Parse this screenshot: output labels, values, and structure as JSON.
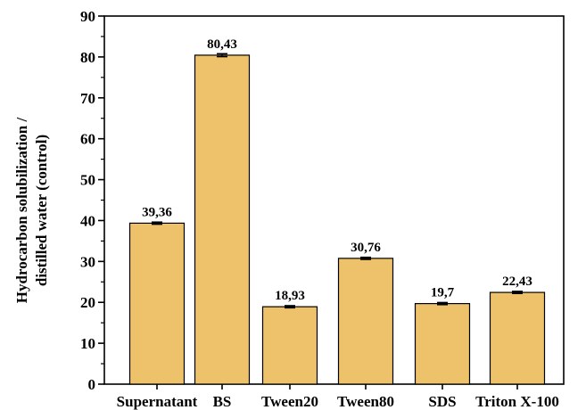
{
  "chart_data": {
    "type": "bar",
    "categories": [
      "Supernatant",
      "BS",
      "Tween20",
      "Tween80",
      "SDS",
      "Triton X-100"
    ],
    "values": [
      39.36,
      80.43,
      18.93,
      30.76,
      19.7,
      22.43
    ],
    "data_labels": [
      "39,36",
      "80,43",
      "18,93",
      "30,76",
      "19,7",
      "22,43"
    ],
    "error": [
      0.25,
      0.35,
      0.25,
      0.25,
      0.25,
      0.25
    ],
    "title": "",
    "xlabel": "",
    "ylabel_lines": [
      "Hydrocarbon solubilization /",
      "distilled water (control)"
    ],
    "ylim": [
      0,
      90
    ],
    "yticks": [
      0,
      10,
      20,
      30,
      40,
      50,
      60,
      70,
      80,
      90
    ],
    "grid": false,
    "colors": {
      "bar_fill": "#EEC26B",
      "bar_stroke": "#000000",
      "axis": "#000000"
    }
  }
}
